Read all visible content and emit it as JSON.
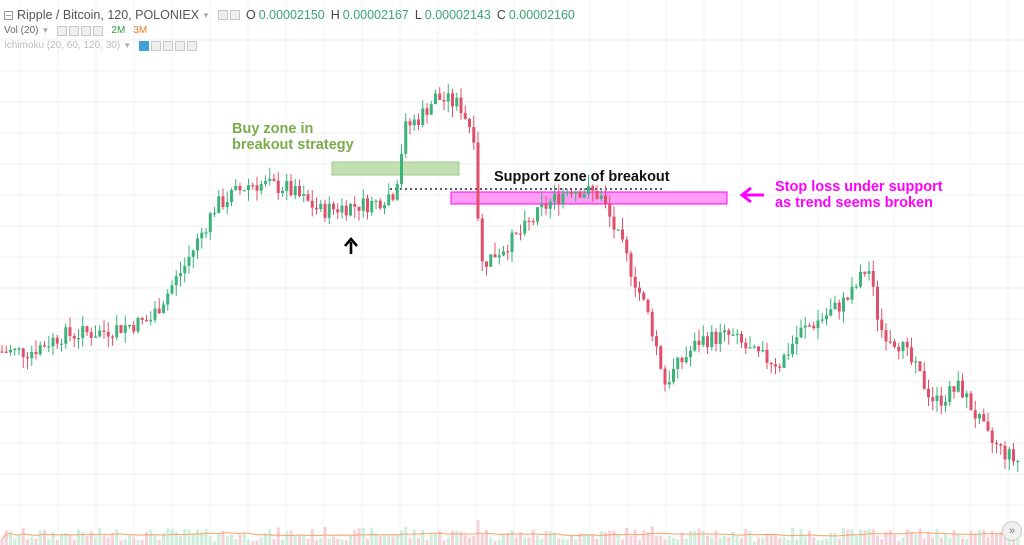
{
  "header": {
    "title": "Ripple / Bitcoin, 120, POLONIEX",
    "ohlc": [
      {
        "label": "O",
        "value": "0.00002150"
      },
      {
        "label": "H",
        "value": "0.00002167"
      },
      {
        "label": "L",
        "value": "0.00002143"
      },
      {
        "label": "C",
        "value": "0.00002160"
      }
    ]
  },
  "indicators": {
    "vol_label": "Vol (20)",
    "vol_value_1": "2M",
    "vol_value_2": "3M",
    "ichimoku_label": "Ichimoku (20, 60, 120, 30)"
  },
  "annotations": {
    "buy_zone": "Buy zone in\nbreakout strategy",
    "support_zone": "Support zone of breakout",
    "stop_loss": "Stop loss under support\nas trend seems broken"
  },
  "colors": {
    "up": "#3bb37a",
    "down": "#e0506a",
    "buy_zone_fill": "#b9dba5",
    "stop_zone_fill": "#ff9cf5",
    "stop_zone_stroke": "#ff00ff",
    "vol_ma": "#f2a56b"
  },
  "icons": {
    "arrow_up": "arrow-up-icon",
    "arrow_left": "arrow-left-icon",
    "scroll_right": "double-chevron-right-icon"
  },
  "scroll_button": "»",
  "chart_data": {
    "type": "candlestick",
    "interval": "120",
    "exchange": "POLONIEX",
    "close_path": [
      [
        0,
        1.78e-05
      ],
      [
        30,
        1.78e-05
      ],
      [
        60,
        1.82e-05
      ],
      [
        100,
        1.83e-05
      ],
      [
        150,
        1.86e-05
      ],
      [
        185,
        2e-05
      ],
      [
        215,
        2.15e-05
      ],
      [
        250,
        2.21e-05
      ],
      [
        285,
        2.2e-05
      ],
      [
        320,
        2.14e-05
      ],
      [
        345,
        2.15e-05
      ],
      [
        375,
        2.16e-05
      ],
      [
        395,
        2.19e-05
      ],
      [
        405,
        2.35e-05
      ],
      [
        420,
        2.38e-05
      ],
      [
        435,
        2.43e-05
      ],
      [
        460,
        2.41e-05
      ],
      [
        475,
        2.33e-05
      ],
      [
        480,
        2e-05
      ],
      [
        495,
        2.03e-05
      ],
      [
        520,
        2.08e-05
      ],
      [
        545,
        2.15e-05
      ],
      [
        570,
        2.2e-05
      ],
      [
        600,
        2.18e-05
      ],
      [
        625,
        2.03e-05
      ],
      [
        650,
        1.86e-05
      ],
      [
        665,
        1.7e-05
      ],
      [
        680,
        1.75e-05
      ],
      [
        700,
        1.81e-05
      ],
      [
        730,
        1.82e-05
      ],
      [
        755,
        1.77e-05
      ],
      [
        780,
        1.75e-05
      ],
      [
        800,
        1.83e-05
      ],
      [
        825,
        1.87e-05
      ],
      [
        850,
        1.92e-05
      ],
      [
        868,
        2e-05
      ],
      [
        880,
        1.84e-05
      ],
      [
        900,
        1.8e-05
      ],
      [
        935,
        1.65e-05
      ],
      [
        960,
        1.69e-05
      ],
      [
        990,
        1.55e-05
      ],
      [
        1015,
        1.5e-05
      ]
    ],
    "buy_zone": {
      "from": 2.3e-05,
      "to": 2.32e-05
    },
    "support_level": 2.247e-05,
    "stop_loss_zone": {
      "from": 2.22e-05,
      "to": 2.25e-05
    },
    "price_range": [
      1.4e-05,
      2.5e-05
    ],
    "grid": true,
    "volume_scale": [
      "2M",
      "3M"
    ]
  }
}
